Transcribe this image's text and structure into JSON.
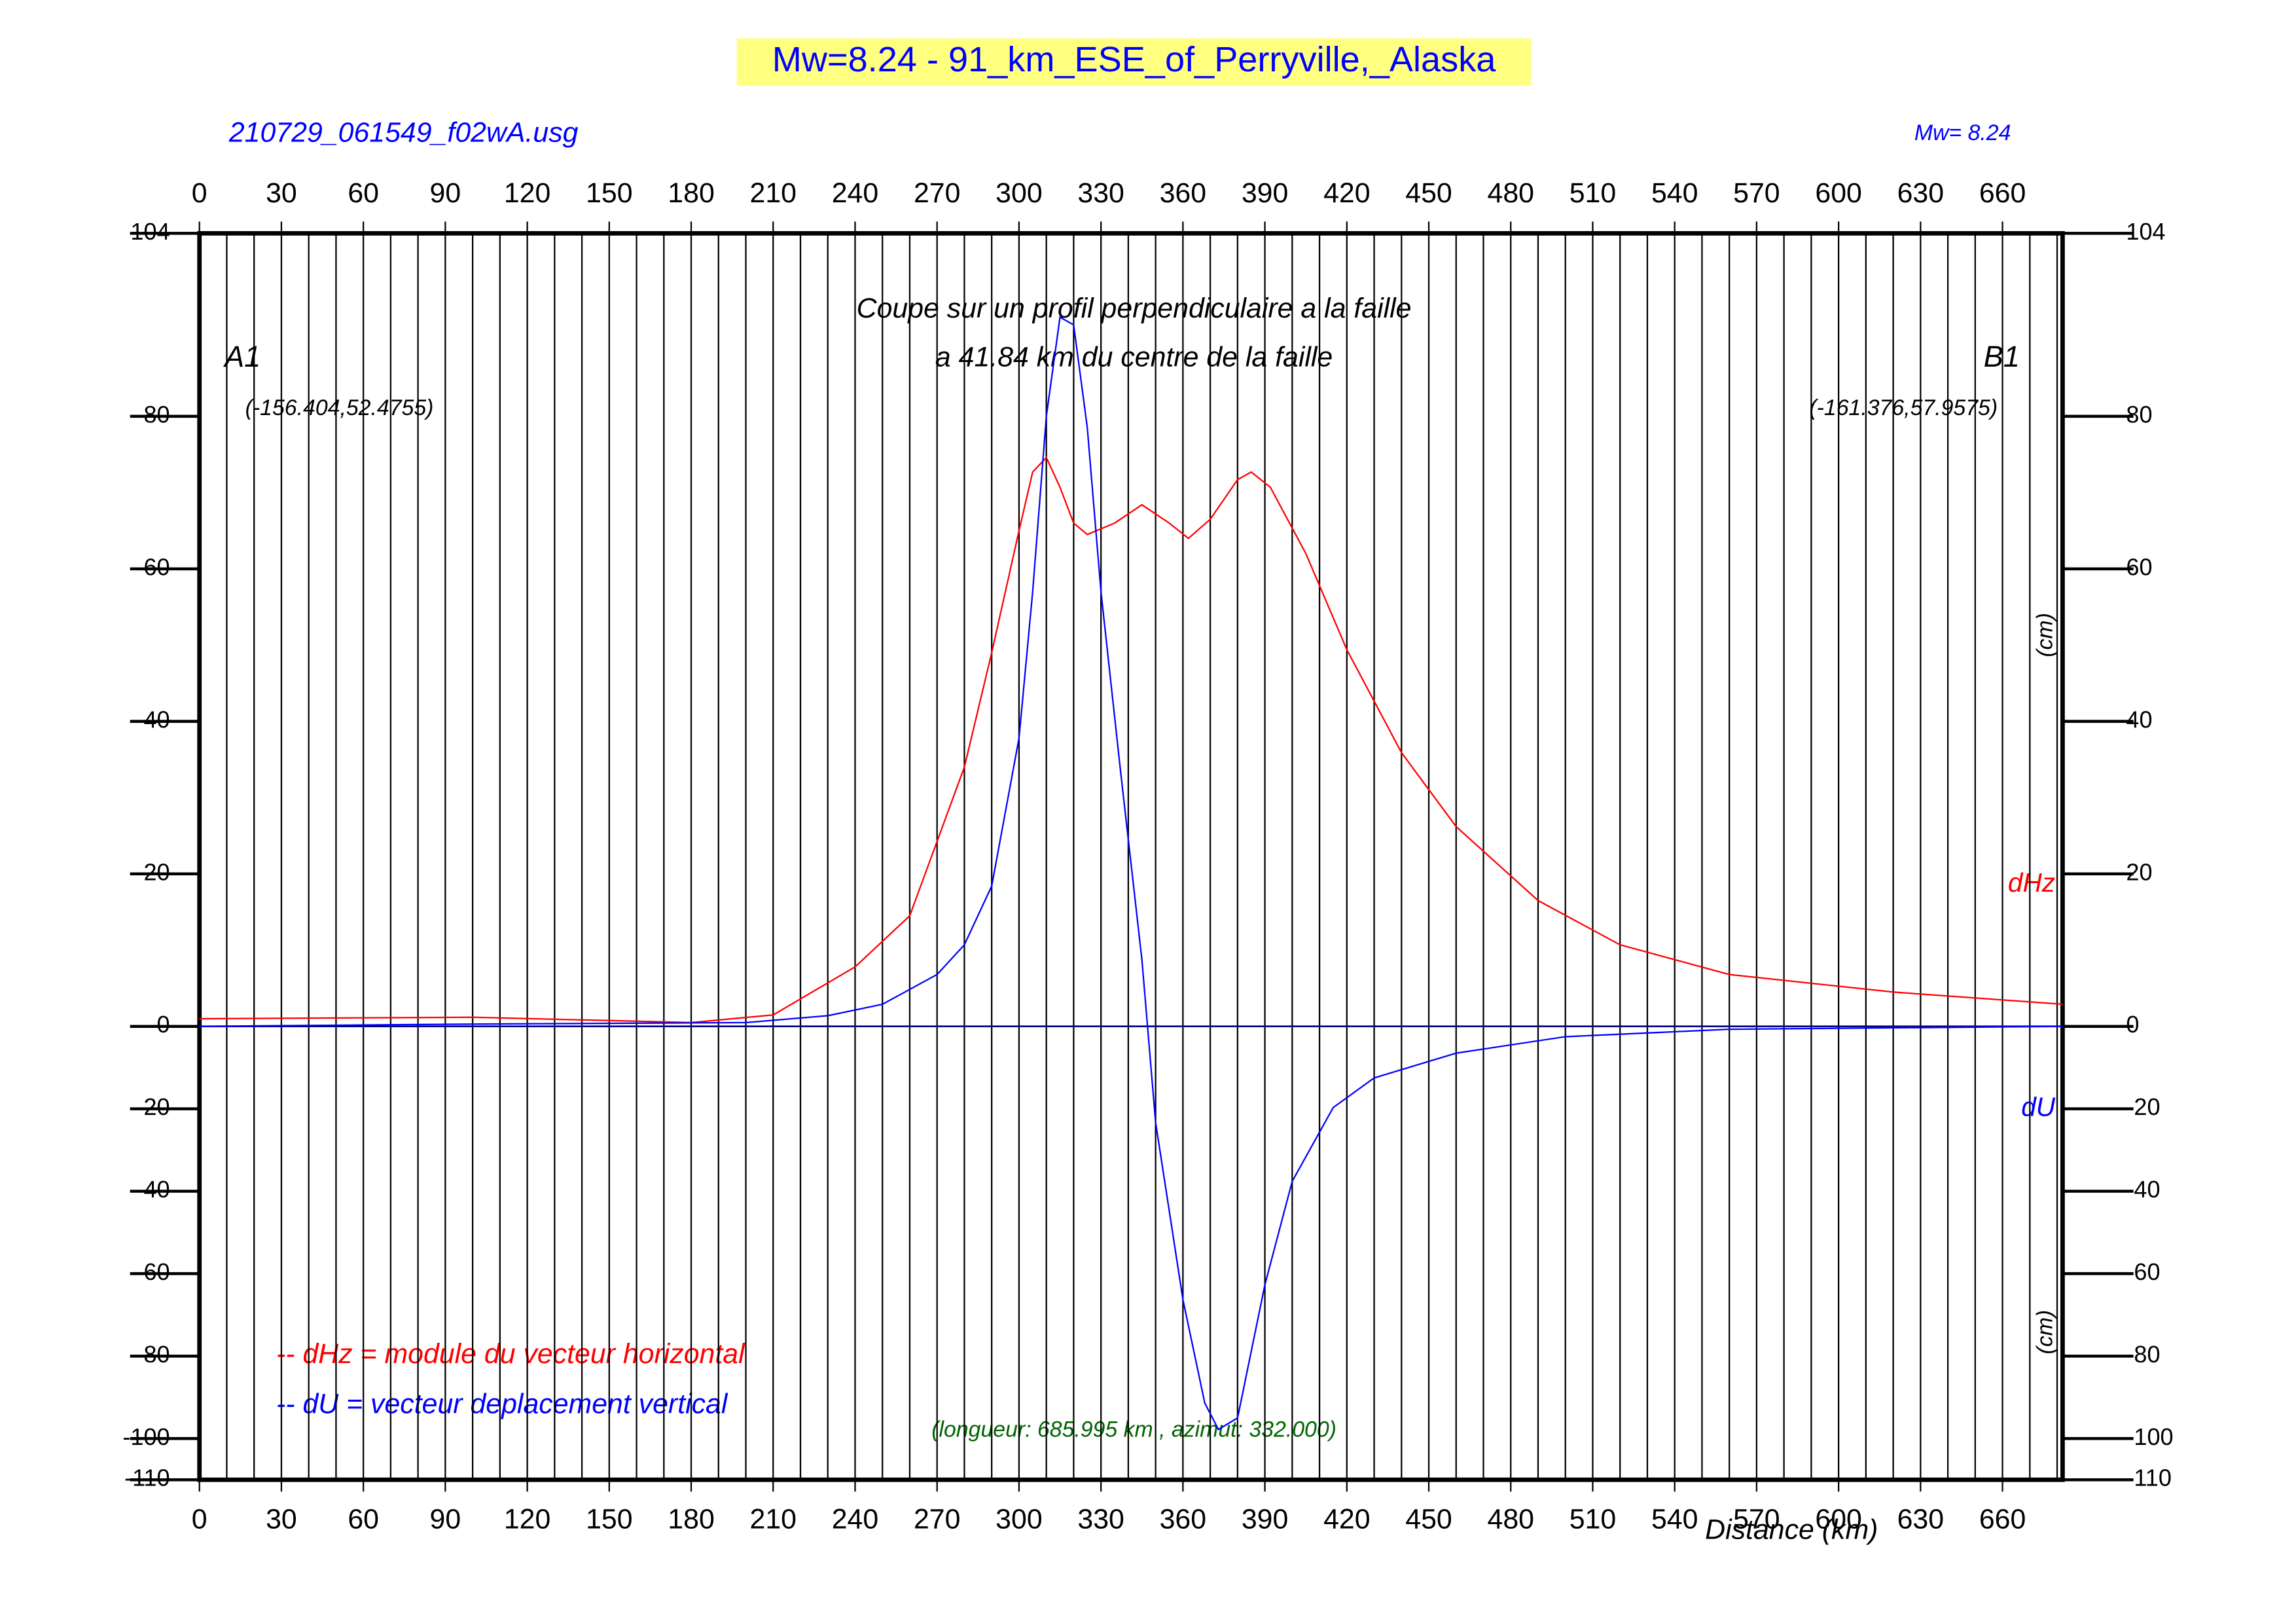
{
  "chart_data": {
    "type": "line",
    "title": "Mw=8.24 - 91_km_ESE_of_Perryville,_Alaska",
    "subtitle": "210729_061549_f02wA.usg",
    "magnitude_label": "Mw= 8.24",
    "annotations": [
      "Coupe sur un profil perpendiculaire a la faille",
      "a 41.84 km du centre de la faille",
      "A1",
      "(-156.404,52.4755)",
      "B1",
      "(-161.376,57.9575)",
      "(longueur: 685.995 km , azimut: 332.000)"
    ],
    "legend_lines": [
      "-- dHz = module du vecteur horizontal",
      "-- dU =  vecteur deplacement vertical"
    ],
    "y_unit_label": "(cm)",
    "xlabel": "Distance (km)",
    "xlim": [
      0,
      682
    ],
    "xticks": [
      0,
      30,
      60,
      90,
      120,
      150,
      180,
      210,
      240,
      270,
      300,
      330,
      360,
      390,
      420,
      450,
      480,
      510,
      540,
      570,
      600,
      630,
      660
    ],
    "xgrid": [
      10,
      20,
      40,
      50,
      70,
      80,
      100,
      110,
      130,
      140,
      160,
      170,
      190,
      200,
      220,
      230,
      250,
      260,
      280,
      290,
      310,
      320,
      340,
      350,
      370,
      380,
      400,
      410,
      430,
      440,
      460,
      470,
      490,
      500,
      520,
      530,
      550,
      560,
      580,
      590,
      610,
      620,
      640,
      650,
      670,
      680
    ],
    "ylim": [
      -110,
      104
    ],
    "yticks": [
      -110,
      -100,
      -80,
      -60,
      -40,
      -20,
      0,
      20,
      40,
      60,
      80,
      104
    ],
    "series": [
      {
        "name": "dHz",
        "color": "#ff0000",
        "x": [
          0,
          100,
          180,
          210,
          240,
          260,
          280,
          290,
          300,
          305,
          310,
          315,
          320,
          325,
          335,
          345,
          355,
          362,
          370,
          380,
          385,
          392,
          405,
          420,
          440,
          460,
          490,
          520,
          560,
          620,
          682
        ],
        "values": [
          1,
          1.2,
          0.5,
          1.5,
          7.8,
          14.5,
          34,
          49,
          65,
          72.7,
          74.6,
          70.7,
          66,
          64.5,
          66,
          68.4,
          66,
          64,
          66.5,
          71.7,
          72.7,
          70.7,
          62,
          49.4,
          35.9,
          26.2,
          16.5,
          10.7,
          6.8,
          4.5,
          2.9
        ]
      },
      {
        "name": "dU",
        "color": "#0000ff",
        "x": [
          0,
          100,
          200,
          230,
          250,
          270,
          280,
          290,
          300,
          305,
          310,
          315,
          320,
          325,
          330,
          337,
          345,
          350,
          360,
          368,
          373,
          380,
          390,
          400,
          415,
          430,
          460,
          500,
          560,
          682
        ],
        "values": [
          0,
          0.3,
          0.5,
          1.4,
          2.9,
          6.8,
          10.7,
          18.4,
          37.8,
          57,
          80,
          93,
          92,
          78.5,
          57,
          34,
          8.7,
          -23.3,
          -66.3,
          -91.4,
          -97.8,
          -95,
          -62.7,
          -37.6,
          -19.7,
          -12.5,
          -6.5,
          -2.5,
          -0.7,
          0
        ]
      }
    ]
  }
}
